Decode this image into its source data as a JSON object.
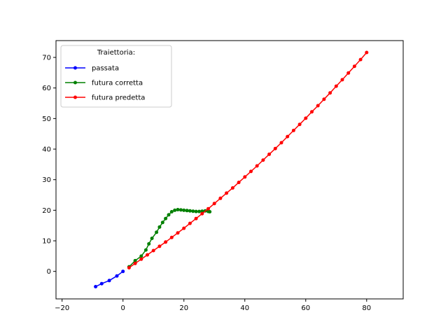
{
  "chart_data": {
    "type": "line",
    "title": "",
    "xlabel": "",
    "ylabel": "",
    "xlim": [
      -22,
      92
    ],
    "ylim": [
      -9,
      75.5
    ],
    "xticks": [
      -20,
      0,
      20,
      40,
      60,
      80
    ],
    "yticks": [
      0,
      10,
      20,
      30,
      40,
      50,
      60,
      70
    ],
    "grid": false,
    "legend": {
      "title": "Traiettoria:",
      "placement": "top-left"
    },
    "series": [
      {
        "name": "passata",
        "color": "#0000ff",
        "marker": "dot",
        "points": [
          [
            -9,
            -5
          ],
          [
            -7,
            -4
          ],
          [
            -4.5,
            -3
          ],
          [
            -2,
            -1.5
          ],
          [
            0,
            0
          ]
        ]
      },
      {
        "name": "futura corretta",
        "color": "#008000",
        "marker": "dot",
        "points": [
          [
            2,
            1.5
          ],
          [
            4,
            3.5
          ],
          [
            6,
            5
          ],
          [
            7.5,
            7
          ],
          [
            8.5,
            9
          ],
          [
            9.5,
            10.8
          ],
          [
            11,
            12.8
          ],
          [
            12,
            14.5
          ],
          [
            13,
            16
          ],
          [
            14,
            17.3
          ],
          [
            15,
            18.5
          ],
          [
            16,
            19.5
          ],
          [
            17,
            20
          ],
          [
            18,
            20.2
          ],
          [
            19,
            20.1
          ],
          [
            20,
            20
          ],
          [
            21,
            19.9
          ],
          [
            22,
            19.8
          ],
          [
            23,
            19.7
          ],
          [
            24,
            19.6
          ],
          [
            25,
            19.6
          ],
          [
            26,
            19.7
          ],
          [
            27,
            19.8
          ],
          [
            28,
            19.6
          ],
          [
            28.5,
            19.5
          ]
        ]
      },
      {
        "name": "futura predetta",
        "color": "#ff0000",
        "marker": "dot",
        "points": [
          [
            2,
            1.2
          ],
          [
            4,
            2.6
          ],
          [
            6,
            4
          ],
          [
            8,
            5.4
          ],
          [
            10,
            6.8
          ],
          [
            12,
            8.2
          ],
          [
            14,
            9.6
          ],
          [
            16,
            11.1
          ],
          [
            18,
            12.6
          ],
          [
            20,
            14.1
          ],
          [
            22,
            15.7
          ],
          [
            24,
            17.3
          ],
          [
            26,
            18.9
          ],
          [
            28,
            20.5
          ],
          [
            30,
            22.2
          ],
          [
            32,
            23.9
          ],
          [
            34,
            25.6
          ],
          [
            36,
            27.3
          ],
          [
            38,
            29.1
          ],
          [
            40,
            30.9
          ],
          [
            42,
            32.7
          ],
          [
            44,
            34.5
          ],
          [
            46,
            36.4
          ],
          [
            48,
            38.3
          ],
          [
            50,
            40.2
          ],
          [
            52,
            42.1
          ],
          [
            54,
            44.1
          ],
          [
            56,
            46.1
          ],
          [
            58,
            48.1
          ],
          [
            60,
            50.1
          ],
          [
            62,
            52.2
          ],
          [
            64,
            54.2
          ],
          [
            66,
            56.3
          ],
          [
            68,
            58.4
          ],
          [
            70,
            60.6
          ],
          [
            72,
            62.7
          ],
          [
            74,
            64.9
          ],
          [
            76,
            67.1
          ],
          [
            78,
            69.3
          ],
          [
            80,
            71.6
          ]
        ]
      }
    ]
  }
}
